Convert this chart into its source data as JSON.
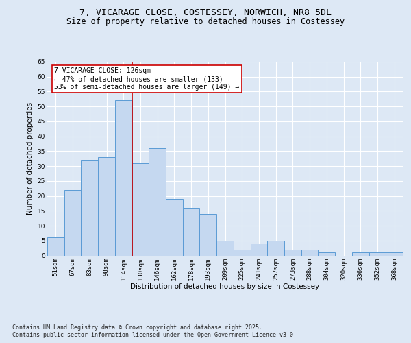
{
  "title_line1": "7, VICARAGE CLOSE, COSTESSEY, NORWICH, NR8 5DL",
  "title_line2": "Size of property relative to detached houses in Costessey",
  "xlabel": "Distribution of detached houses by size in Costessey",
  "ylabel": "Number of detached properties",
  "categories": [
    "51sqm",
    "67sqm",
    "83sqm",
    "98sqm",
    "114sqm",
    "130sqm",
    "146sqm",
    "162sqm",
    "178sqm",
    "193sqm",
    "209sqm",
    "225sqm",
    "241sqm",
    "257sqm",
    "273sqm",
    "288sqm",
    "304sqm",
    "320sqm",
    "336sqm",
    "352sqm",
    "368sqm"
  ],
  "values": [
    6,
    22,
    32,
    33,
    52,
    31,
    36,
    19,
    16,
    14,
    5,
    2,
    4,
    5,
    2,
    2,
    1,
    0,
    1,
    1,
    1
  ],
  "bar_color": "#c5d8f0",
  "bar_edge_color": "#5b9bd5",
  "vline_color": "#cc0000",
  "vline_position": 4.5,
  "annotation_text": "7 VICARAGE CLOSE: 126sqm\n← 47% of detached houses are smaller (133)\n53% of semi-detached houses are larger (149) →",
  "annotation_box_color": "#ffffff",
  "annotation_box_edge": "#cc0000",
  "ylim": [
    0,
    65
  ],
  "yticks": [
    0,
    5,
    10,
    15,
    20,
    25,
    30,
    35,
    40,
    45,
    50,
    55,
    60,
    65
  ],
  "background_color": "#dde8f5",
  "plot_bg_color": "#dde8f5",
  "grid_color": "#ffffff",
  "footer_line1": "Contains HM Land Registry data © Crown copyright and database right 2025.",
  "footer_line2": "Contains public sector information licensed under the Open Government Licence v3.0.",
  "title_fontsize": 9.5,
  "subtitle_fontsize": 8.5,
  "axis_label_fontsize": 7.5,
  "tick_fontsize": 6.5,
  "annotation_fontsize": 7.0,
  "footer_fontsize": 6.0
}
